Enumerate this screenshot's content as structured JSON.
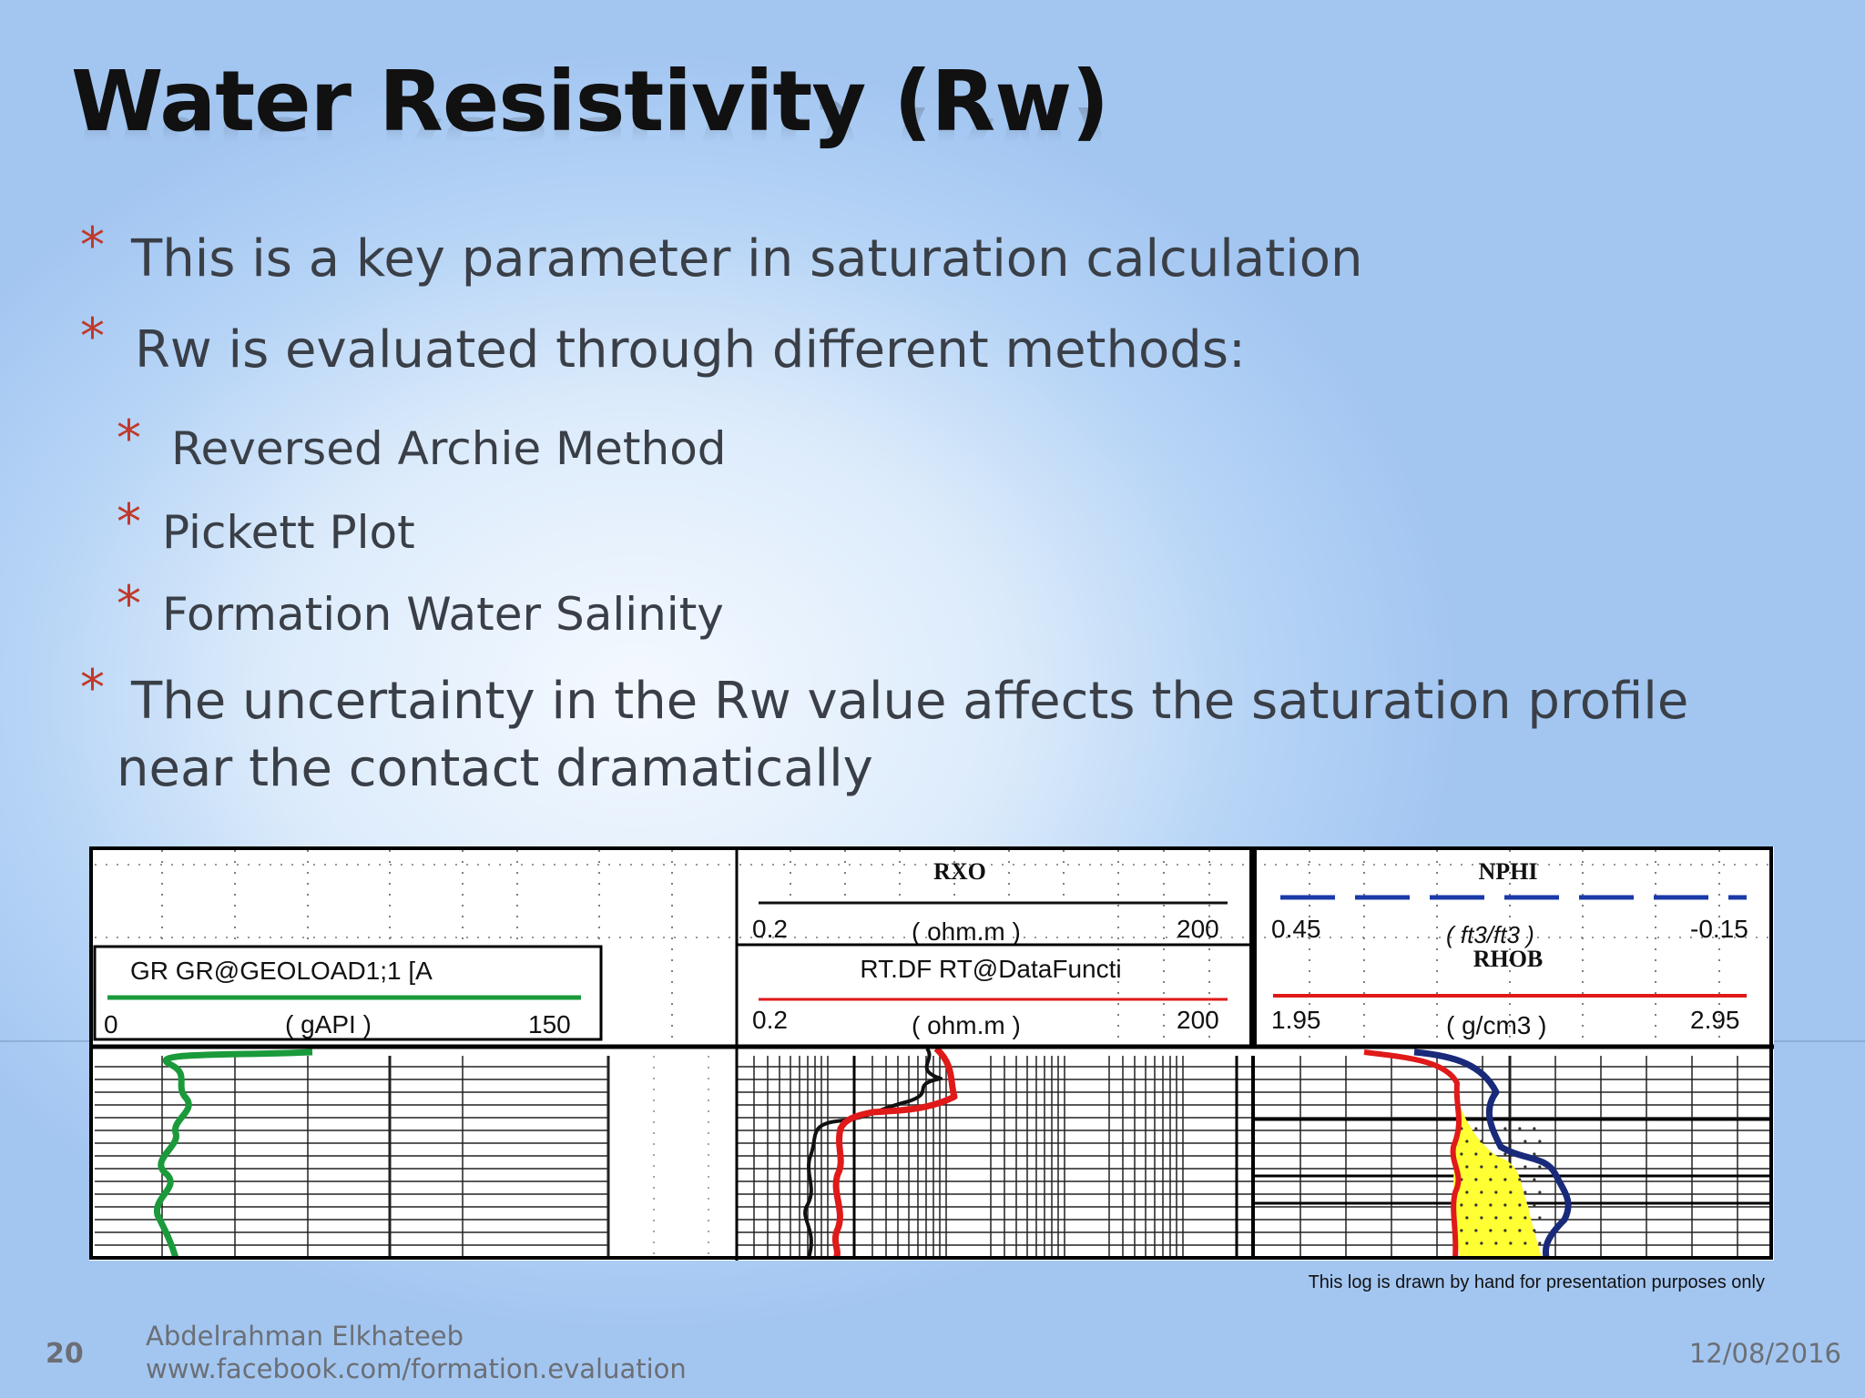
{
  "slide": {
    "title": "Water Resistivity (Rw)",
    "bullets": [
      {
        "level": 1,
        "text": "This is a key parameter in saturation calculation"
      },
      {
        "level": 1,
        "text": "Rw is evaluated through different methods:"
      },
      {
        "level": 2,
        "text": "Reversed Archie Method"
      },
      {
        "level": 2,
        "text": "Pickett Plot"
      },
      {
        "level": 2,
        "text": "Formation Water Salinity"
      },
      {
        "level": 1,
        "text": "The uncertainty in the Rw value affects the saturation profile",
        "text2": "near the contact dramatically"
      }
    ],
    "bullet_color": "#c0392b",
    "footnote": "This log is drawn by hand for presentation purposes only",
    "page_number": "20",
    "author": "Abdelrahman Elkhateeb",
    "website": "www.facebook.com/formation.evaluation",
    "date": "12/08/2016"
  },
  "log": {
    "track1": {
      "curve_name": "GR GR@GEOLOAD1;1 [A",
      "min": "0",
      "max": "150",
      "unit": "( gAPI )",
      "color": "#1a9a3a"
    },
    "track3": {
      "curve1_name": "RXO",
      "curve1_min": "0.2",
      "curve1_max": "200",
      "curve1_unit": "( ohm.m )",
      "curve2_name": "RT.DF RT@DataFuncti",
      "curve2_min": "0.2",
      "curve2_max": "200",
      "curve2_unit": "( ohm.m )",
      "curve1_color": "#111111",
      "curve2_color": "#e01919"
    },
    "track4": {
      "curve1_name": "NPHI",
      "curve1_min": "0.45",
      "curve1_max": "-0.15",
      "curve1_unit": "( ft3/ft3 )",
      "curve2_name": "RHOB",
      "curve2_min": "1.95",
      "curve2_max": "2.95",
      "curve2_unit": "( g/cm3 )",
      "curve1_color": "#1a3a9a",
      "curve2_color": "#e01919",
      "fill_color": "#ffff33"
    }
  }
}
